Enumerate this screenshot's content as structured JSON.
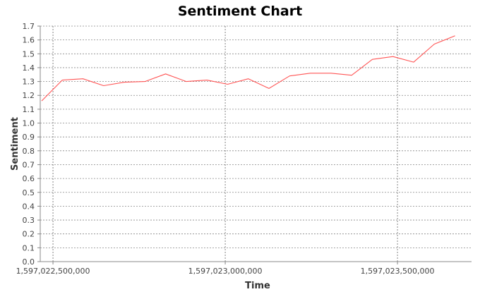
{
  "chart_data": {
    "type": "line",
    "title": "Sentiment Chart",
    "xlabel": "Time",
    "ylabel": "Sentiment",
    "xlim": [
      1597022463000,
      1597023715000
    ],
    "ylim": [
      0.0,
      1.7
    ],
    "x_ticks": [
      1597022500000,
      1597023000000,
      1597023500000
    ],
    "x_tick_labels": [
      "1,597,022,500,000",
      "1,597,023,000,000",
      "1,597,023,500,000"
    ],
    "y_ticks": [
      0.0,
      0.1,
      0.2,
      0.3,
      0.4,
      0.5,
      0.6,
      0.7,
      0.8,
      0.9,
      1.0,
      1.1,
      1.2,
      1.3,
      1.4,
      1.5,
      1.6,
      1.7
    ],
    "y_tick_labels": [
      "0.0",
      "0.1",
      "0.2",
      "0.3",
      "0.4",
      "0.5",
      "0.6",
      "0.7",
      "0.8",
      "0.9",
      "1.0",
      "1.1",
      "1.2",
      "1.3",
      "1.4",
      "1.5",
      "1.6",
      "1.7"
    ],
    "grid": true,
    "series": [
      {
        "color": "#ff5555",
        "x": [
          1597022467000,
          1597022527000,
          1597022587000,
          1597022647000,
          1597022707000,
          1597022767000,
          1597022827000,
          1597022887000,
          1597022947000,
          1597023007000,
          1597023067000,
          1597023127000,
          1597023187000,
          1597023247000,
          1597023307000,
          1597023367000,
          1597023427000,
          1597023487000,
          1597023547000,
          1597023607000,
          1597023667000
        ],
        "values": [
          1.16,
          1.31,
          1.32,
          1.27,
          1.295,
          1.3,
          1.355,
          1.3,
          1.31,
          1.28,
          1.32,
          1.25,
          1.34,
          1.36,
          1.36,
          1.345,
          1.46,
          1.48,
          1.44,
          1.57,
          1.63
        ]
      }
    ]
  }
}
